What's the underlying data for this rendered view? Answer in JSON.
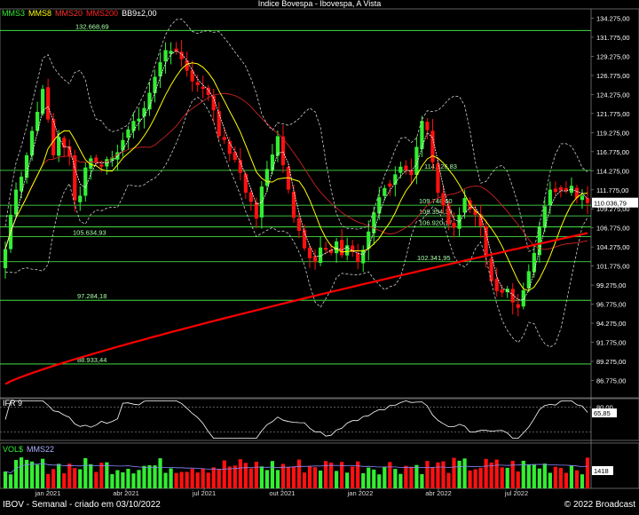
{
  "window": {
    "title": "Indice Bovespa - Ibovespa, A Vista",
    "footer_left": "IBOV - Semanal - criado em 03/10/2022",
    "footer_right": "© 2022 Broadcast"
  },
  "legend": {
    "mms3": "MMS3",
    "mms8": "MMS8",
    "mms20": "MMS20",
    "mms200": "MMS200",
    "bb": "BB9±2,00",
    "ifr_label": "IFR 9",
    "vol_label": "VOL$",
    "mms22_label": "MMS22"
  },
  "colors": {
    "mms3": "#ffffff",
    "mms8": "#ffff00",
    "mms20": "#cc2222",
    "mms200": "#ff0000",
    "up": "#33ee33",
    "down": "#ff1111",
    "hline": "#4cff4c",
    "band": "#cccccc"
  },
  "chart_data": [
    {
      "type": "candlestick",
      "title": "Indice Bovespa - Ibovespa, A Vista",
      "ylim": [
        84500,
        135500
      ],
      "y_ticks": [
        "134.275,00",
        "131.775,00",
        "129.275,00",
        "126.775,00",
        "124.275,00",
        "121.775,00",
        "119.275,00",
        "116.775,00",
        "114.275,00",
        "111.775,00",
        "109.275,00",
        "106.775,00",
        "104.275,00",
        "101.775,00",
        "99.275,00",
        "96.775,00",
        "94.275,00",
        "91.775,00",
        "89.275,00",
        "86.775,00"
      ],
      "x_labels": [
        "jan 2021",
        "abr 2021",
        "jul 2021",
        "out 2021",
        "jan 2022",
        "abr 2022",
        "jul 2022"
      ],
      "last_price": "110.036,79",
      "series": [
        {
          "name": "MMS3"
        },
        {
          "name": "MMS8"
        },
        {
          "name": "MMS20"
        },
        {
          "name": "MMS200"
        },
        {
          "name": "BB9±2,00"
        }
      ],
      "hlines": [
        {
          "value": 132668.69,
          "label": "132.668,69"
        },
        {
          "value": 114326.83,
          "label": "114.326,83"
        },
        {
          "value": 109748.6,
          "label": "109.748,60"
        },
        {
          "value": 108354.39,
          "label": "108.354,39"
        },
        {
          "value": 106920.17,
          "label": "106.920,17"
        },
        {
          "value": 105634.93,
          "label": "105.634,93"
        },
        {
          "value": 102341.95,
          "label": "102.341,95"
        },
        {
          "value": 97284.18,
          "label": "97.284,18"
        },
        {
          "value": 88933.44,
          "label": "88.933,44"
        }
      ],
      "closes": [
        104000,
        108500,
        111800,
        113500,
        116300,
        119500,
        122000,
        125000,
        121000,
        116300,
        118700,
        117300,
        116200,
        110400,
        111000,
        114700,
        115900,
        115300,
        114800,
        115800,
        116000,
        116700,
        118300,
        119700,
        120800,
        121100,
        122500,
        124500,
        126600,
        128500,
        130100,
        130000,
        129900,
        128900,
        127400,
        126000,
        125500,
        125000,
        124200,
        122200,
        118800,
        118300,
        116500,
        115700,
        114000,
        111400,
        110200,
        108000,
        112200,
        114500,
        116400,
        118800,
        115000,
        111800,
        108100,
        106400,
        104100,
        102800,
        102300,
        104200,
        103900,
        103500,
        105000,
        103200,
        104500,
        103600,
        102300,
        103900,
        106300,
        108800,
        110800,
        112000,
        112200,
        113800,
        114800,
        114300,
        113700,
        117400,
        120800,
        119600,
        115400,
        111400,
        109700,
        107300,
        106800,
        108500,
        110700,
        109200,
        108500,
        107000,
        103000,
        99800,
        98500,
        98300,
        98800,
        97000,
        96300,
        98600,
        101100,
        103500,
        107000,
        109600,
        111800,
        111500,
        111700,
        111600,
        112300,
        110700,
        111000,
        110036.79
      ]
    },
    {
      "type": "line",
      "title": "IFR 9",
      "ylim": [
        0,
        100
      ],
      "y_ticks": [
        "80,00"
      ],
      "last_value": "65,85"
    },
    {
      "type": "bar",
      "title": "VOL$",
      "last_value": "1418",
      "series": [
        {
          "name": "VOL$"
        },
        {
          "name": "MMS22"
        }
      ]
    }
  ]
}
